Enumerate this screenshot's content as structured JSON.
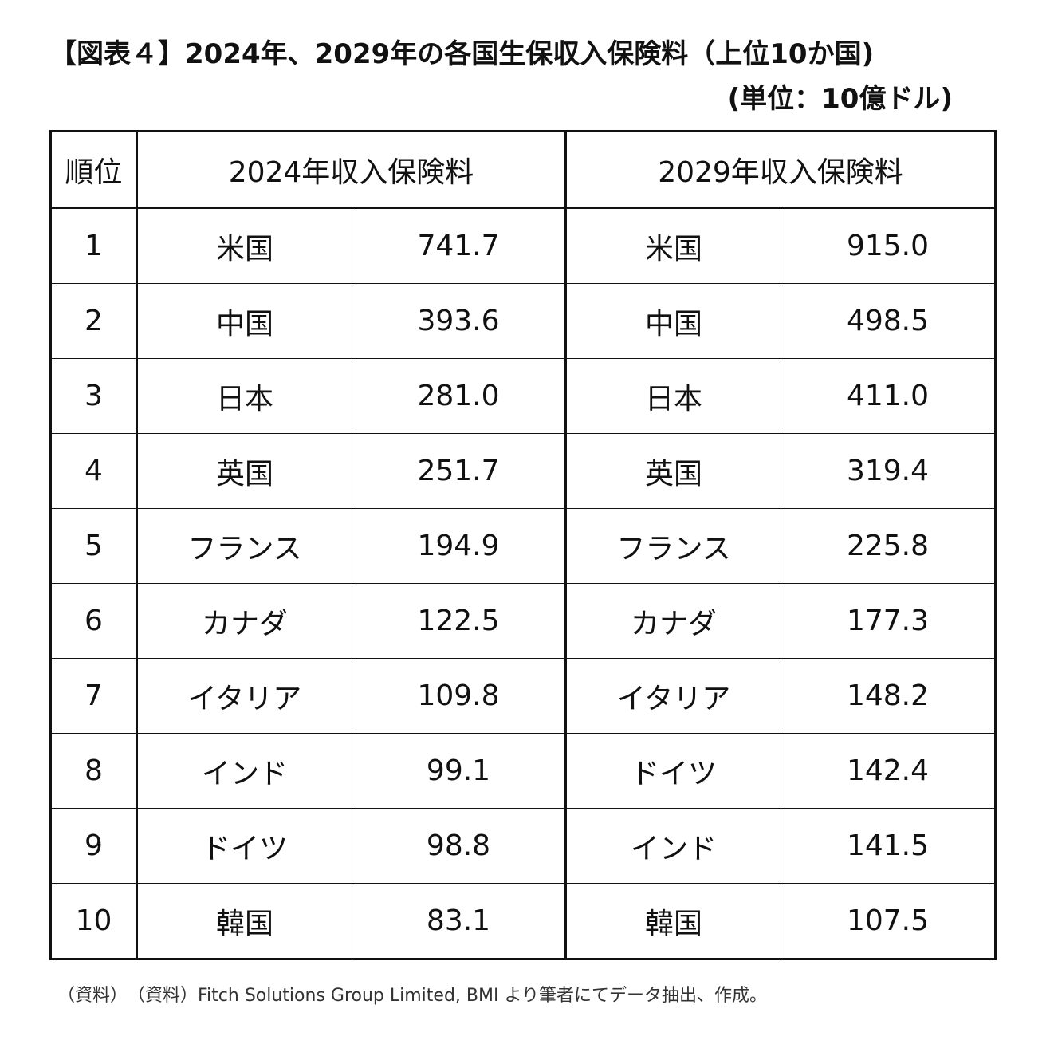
{
  "header": {
    "title": "【図表４】2024年、2029年の各国生保収入保険料（上位10か国)",
    "unit": "(単位：10億ドル)"
  },
  "table": {
    "columns": [
      "順位",
      "2024年収入保険料",
      "2029年収入保険料"
    ],
    "rows": [
      [
        1,
        "米国",
        "741.7",
        "米国",
        "915.0"
      ],
      [
        2,
        "中国",
        "393.6",
        "中国",
        "498.5"
      ],
      [
        3,
        "日本",
        "281.0",
        "日本",
        "411.0"
      ],
      [
        4,
        "英国",
        "251.7",
        "英国",
        "319.4"
      ],
      [
        5,
        "フランス",
        "194.9",
        "フランス",
        "225.8"
      ],
      [
        6,
        "カナダ",
        "122.5",
        "カナダ",
        "177.3"
      ],
      [
        7,
        "イタリア",
        "109.8",
        "イタリア",
        "148.2"
      ],
      [
        8,
        "インド",
        "99.1",
        "ドイツ",
        "142.4"
      ],
      [
        9,
        "ドイツ",
        "98.8",
        "インド",
        "141.5"
      ],
      [
        10,
        "韓国",
        "83.1",
        "韓国",
        "107.5"
      ]
    ]
  },
  "source": "（資料）　（資料）Fitch Solutions Group Limited, BMI より筆者にてデータ抽出、作成。"
}
